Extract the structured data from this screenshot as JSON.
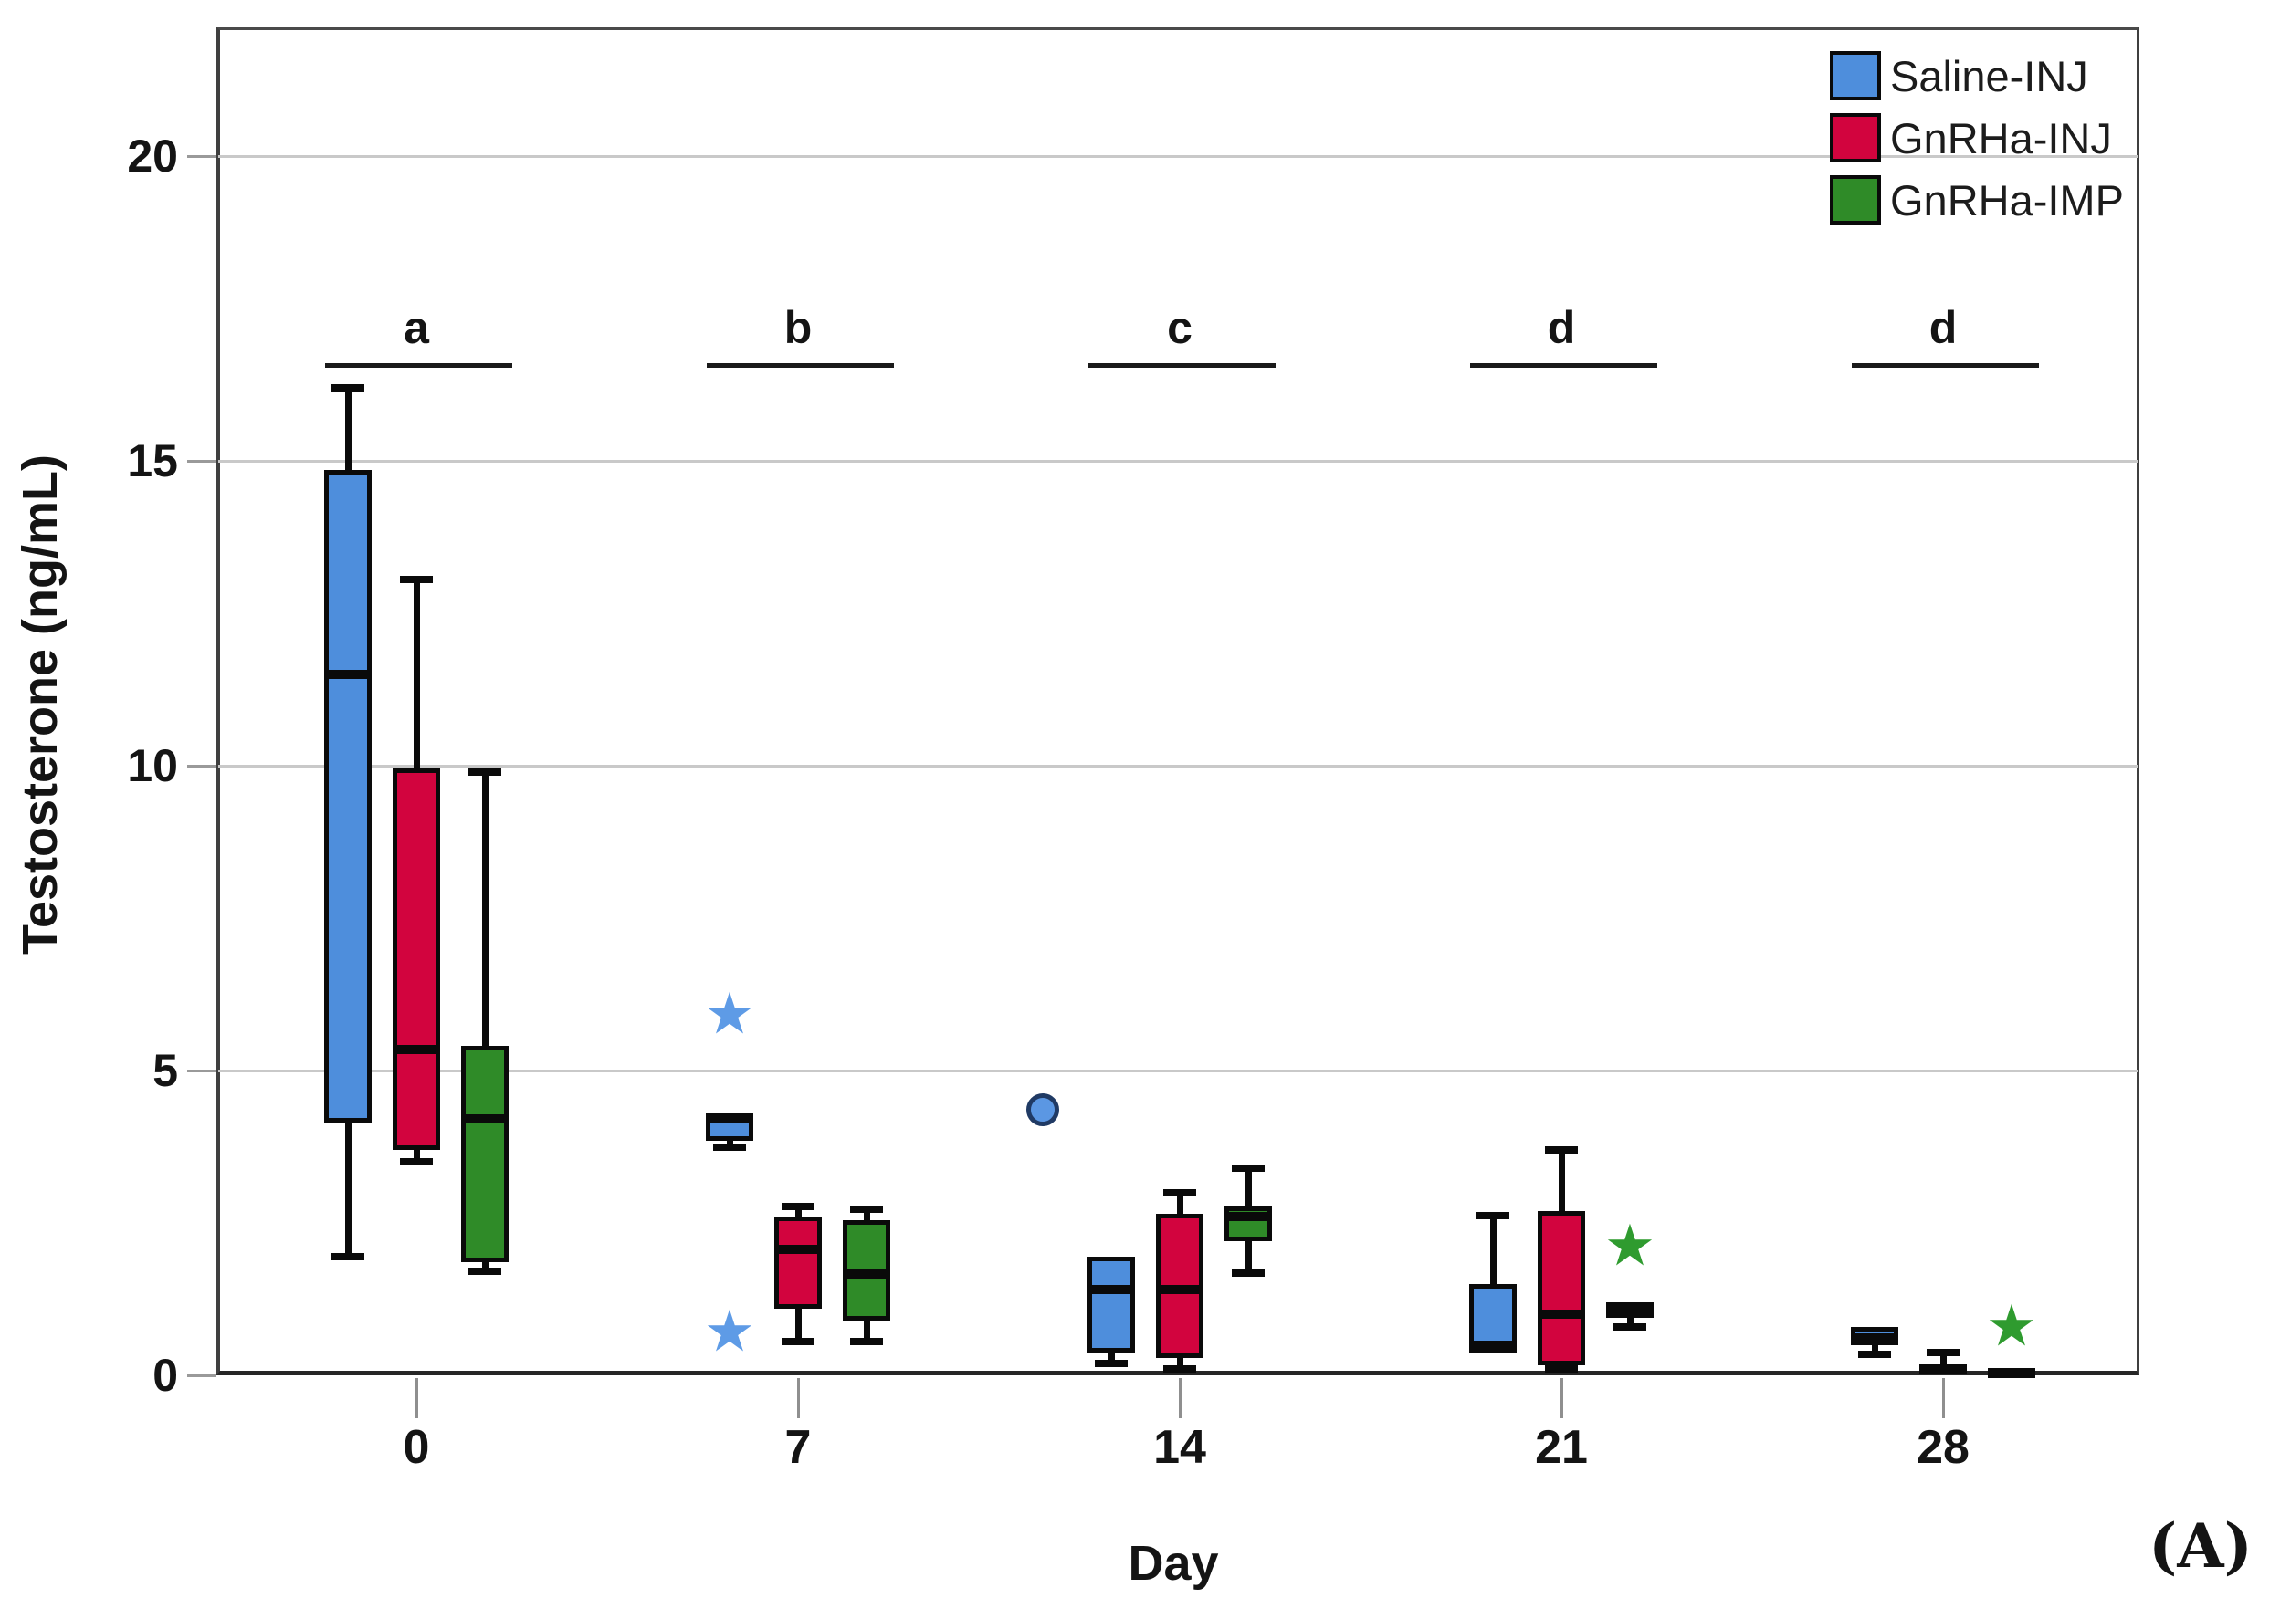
{
  "figure": {
    "panel_label": "(A)"
  },
  "chart_data": {
    "type": "boxplot",
    "xlabel": "Day",
    "ylabel": "Testosterone (ng/mL)",
    "categories": [
      "0",
      "7",
      "14",
      "21",
      "28"
    ],
    "yticks": [
      0,
      5,
      10,
      15,
      20
    ],
    "ylim": [
      0,
      22.1
    ],
    "grid": "horizontal-light-gray",
    "legend_position": "top-right-inside",
    "frame_color": "#3f3f3f",
    "gridline_color": "#c9c9c9",
    "significance": [
      {
        "day": "0",
        "label": "a"
      },
      {
        "day": "7",
        "label": "b"
      },
      {
        "day": "14",
        "label": "c"
      },
      {
        "day": "21",
        "label": "d"
      },
      {
        "day": "28",
        "label": "d"
      }
    ],
    "significance_line_value": 16.6,
    "series": [
      {
        "name": "Saline-INJ",
        "color": "#4e8edc",
        "outlier_color": "#5e9be6",
        "boxes": [
          {
            "day": "0",
            "whisker_low": 1.95,
            "q1": 4.15,
            "median": 11.5,
            "q3": 14.85,
            "whisker_high": 16.2,
            "outliers": []
          },
          {
            "day": "7",
            "whisker_low": 3.75,
            "q1": 3.85,
            "median": 4.2,
            "q3": 4.3,
            "whisker_high": 4.3,
            "outliers": [
              {
                "value": 5.9,
                "marker": "star"
              },
              {
                "value": 0.69,
                "marker": "star"
              }
            ]
          },
          {
            "day": "14",
            "whisker_low": 0.2,
            "q1": 0.37,
            "median": 1.4,
            "q3": 1.95,
            "whisker_high": 1.95,
            "outliers": [
              {
                "value": 4.36,
                "marker": "circle"
              }
            ]
          },
          {
            "day": "21",
            "whisker_low": 0.36,
            "q1": 0.36,
            "median": 0.5,
            "q3": 1.5,
            "whisker_high": 2.62,
            "outliers": []
          },
          {
            "day": "28",
            "whisker_low": 0.35,
            "q1": 0.5,
            "median": 0.62,
            "q3": 0.8,
            "whisker_high": 0.8,
            "outliers": []
          }
        ]
      },
      {
        "name": "GnRHa-INJ",
        "color": "#d2043e",
        "outlier_color": "#d2043e",
        "boxes": [
          {
            "day": "0",
            "whisker_low": 3.5,
            "q1": 3.7,
            "median": 5.35,
            "q3": 9.95,
            "whisker_high": 13.05,
            "outliers": []
          },
          {
            "day": "7",
            "whisker_low": 0.55,
            "q1": 1.1,
            "median": 2.07,
            "q3": 2.6,
            "whisker_high": 2.77,
            "outliers": []
          },
          {
            "day": "14",
            "whisker_low": 0.1,
            "q1": 0.28,
            "median": 1.4,
            "q3": 2.65,
            "whisker_high": 3.0,
            "outliers": []
          },
          {
            "day": "21",
            "whisker_low": 0.1,
            "q1": 0.16,
            "median": 1.0,
            "q3": 2.7,
            "whisker_high": 3.7,
            "outliers": []
          },
          {
            "day": "28",
            "whisker_low": 0.0,
            "q1": 0.02,
            "median": 0.1,
            "q3": 0.18,
            "whisker_high": 0.37,
            "outliers": []
          }
        ]
      },
      {
        "name": "GnRHa-IMP",
        "color": "#2f8b28",
        "outlier_color": "#2f9b2f",
        "boxes": [
          {
            "day": "0",
            "whisker_low": 1.7,
            "q1": 1.85,
            "median": 4.2,
            "q3": 5.4,
            "whisker_high": 9.9,
            "outliers": []
          },
          {
            "day": "7",
            "whisker_low": 0.55,
            "q1": 0.9,
            "median": 1.66,
            "q3": 2.54,
            "whisker_high": 2.72,
            "outliers": []
          },
          {
            "day": "14",
            "whisker_low": 1.68,
            "q1": 2.2,
            "median": 2.6,
            "q3": 2.77,
            "whisker_high": 3.4,
            "outliers": []
          },
          {
            "day": "21",
            "whisker_low": 0.8,
            "q1": 0.95,
            "median": 1.05,
            "q3": 1.2,
            "whisker_high": 1.2,
            "outliers": [
              {
                "value": 2.1,
                "marker": "star"
              }
            ]
          },
          {
            "day": "28",
            "whisker_low": 0.02,
            "q1": 0.02,
            "median": 0.05,
            "q3": 0.1,
            "whisker_high": 0.1,
            "outliers": [
              {
                "value": 0.78,
                "marker": "star"
              }
            ]
          }
        ]
      }
    ]
  }
}
